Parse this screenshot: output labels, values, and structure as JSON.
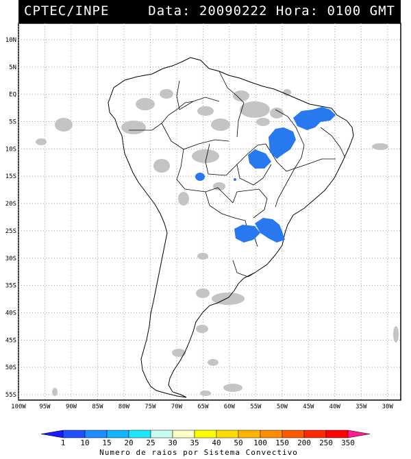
{
  "header": {
    "source": "CPTEC/INPE",
    "datetime": "Data: 20090222 Hora: 0100 GMT"
  },
  "lat_labels": [
    "10N",
    "5N",
    "EQ",
    "5S",
    "10S",
    "15S",
    "20S",
    "25S",
    "30S",
    "35S",
    "40S",
    "45S",
    "50S",
    "55S"
  ],
  "lat_values": [
    10,
    5,
    0,
    -5,
    -10,
    -15,
    -20,
    -25,
    -30,
    -35,
    -40,
    -45,
    -50,
    -55
  ],
  "lon_labels": [
    "100W",
    "95W",
    "90W",
    "85W",
    "80W",
    "75W",
    "70W",
    "65W",
    "60W",
    "55W",
    "50W",
    "45W",
    "40W",
    "35W",
    "30W"
  ],
  "lon_values": [
    -100,
    -95,
    -90,
    -85,
    -80,
    -75,
    -70,
    -65,
    -60,
    -55,
    -50,
    -45,
    -40,
    -35,
    -30
  ],
  "colorbar": {
    "labels": [
      "1",
      "10",
      "15",
      "20",
      "25",
      "30",
      "35",
      "40",
      "50",
      "100",
      "150",
      "200",
      "250",
      "350"
    ],
    "colors": [
      "#1a1aff",
      "#1e50ff",
      "#1e8cff",
      "#14b4ff",
      "#1ee6ff",
      "#c8fff0",
      "#ffffc8",
      "#ffff00",
      "#ffdc00",
      "#ffb400",
      "#ff8c00",
      "#ff5a00",
      "#ff2800",
      "#ff0000",
      "#ff1e8c"
    ],
    "caption": "Numero de raios por Sistema Convectivo"
  },
  "legend_colors": {
    "clouds": "#c0c0c0",
    "lightning": "#2878f0",
    "coast": "#000000"
  }
}
